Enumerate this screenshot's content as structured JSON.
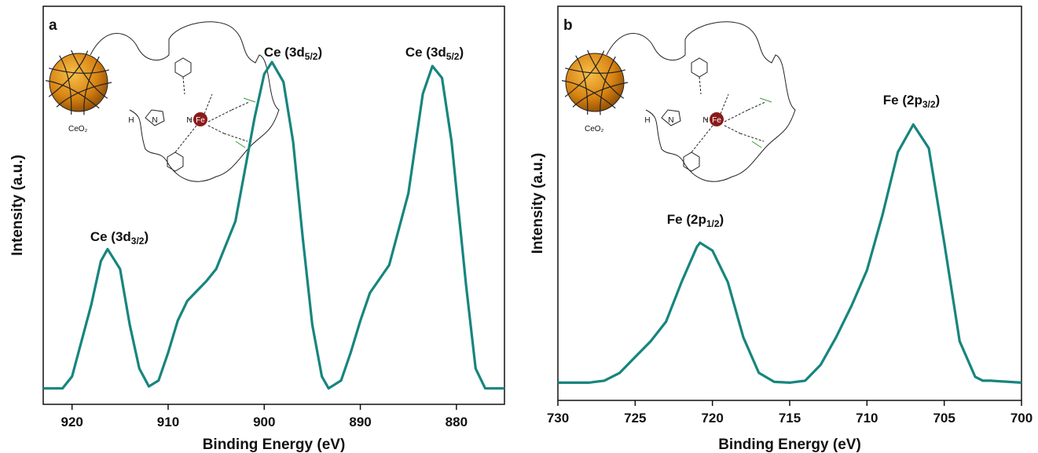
{
  "chart_data": [
    {
      "type": "line",
      "label": "a",
      "xlabel": "Binding Energy (eV)",
      "ylabel": "Intensity (a.u.)",
      "xlim": [
        923,
        875
      ],
      "xticks": [
        920,
        910,
        900,
        890,
        880
      ],
      "ylim": [
        0,
        1
      ],
      "color": "#17857e",
      "x": [
        923,
        921,
        920,
        918,
        917,
        916.3,
        915,
        914,
        913,
        912,
        911,
        910,
        909,
        908,
        906,
        905,
        903,
        901,
        900,
        899.2,
        898,
        897,
        896,
        895,
        894,
        893.3,
        892,
        891,
        890,
        889,
        887,
        885,
        883.5,
        882.5,
        881.5,
        880.5,
        879,
        878,
        877,
        875
      ],
      "values": [
        0.04,
        0.04,
        0.07,
        0.25,
        0.36,
        0.39,
        0.34,
        0.2,
        0.09,
        0.045,
        0.06,
        0.13,
        0.21,
        0.26,
        0.31,
        0.34,
        0.46,
        0.72,
        0.83,
        0.86,
        0.81,
        0.66,
        0.42,
        0.2,
        0.07,
        0.04,
        0.06,
        0.13,
        0.21,
        0.28,
        0.35,
        0.53,
        0.78,
        0.85,
        0.82,
        0.66,
        0.3,
        0.09,
        0.04,
        0.04
      ],
      "annotations": [
        {
          "text": [
            "Ce (3d",
            "3/2",
            ")"
          ]
        },
        {
          "text": [
            "Ce (3d",
            "5/2",
            ")"
          ]
        },
        {
          "text": [
            "Ce (3d",
            "5/2",
            ")"
          ]
        }
      ],
      "inset": {
        "support": "CeO₂",
        "atoms": [
          "H",
          "N",
          "N",
          "Fe"
        ]
      }
    },
    {
      "type": "line",
      "label": "b",
      "xlabel": "Binding Energy (eV)",
      "ylabel": "Intensity (a.u.)",
      "xlim": [
        730,
        700
      ],
      "xticks": [
        730,
        725,
        720,
        715,
        710,
        705,
        700
      ],
      "ylim": [
        0,
        1
      ],
      "color": "#17857e",
      "x": [
        730,
        728,
        727,
        726,
        725,
        724,
        723,
        722,
        721,
        720.8,
        720,
        719,
        718,
        717,
        716,
        715,
        714,
        713,
        712,
        711,
        710,
        709,
        708,
        707,
        706,
        705,
        704,
        703,
        702.5,
        702,
        700
      ],
      "values": [
        0.045,
        0.045,
        0.05,
        0.07,
        0.11,
        0.15,
        0.2,
        0.3,
        0.39,
        0.4,
        0.38,
        0.3,
        0.16,
        0.07,
        0.047,
        0.045,
        0.05,
        0.09,
        0.16,
        0.24,
        0.33,
        0.47,
        0.63,
        0.7,
        0.64,
        0.4,
        0.15,
        0.06,
        0.05,
        0.05,
        0.045
      ],
      "annotations": [
        {
          "text": [
            "Fe (2p",
            "1/2",
            ")"
          ]
        },
        {
          "text": [
            "Fe (2p",
            "3/2",
            ")"
          ]
        }
      ],
      "inset": {
        "support": "CeO₂",
        "atoms": [
          "H",
          "N",
          "N",
          "Fe"
        ]
      }
    }
  ]
}
